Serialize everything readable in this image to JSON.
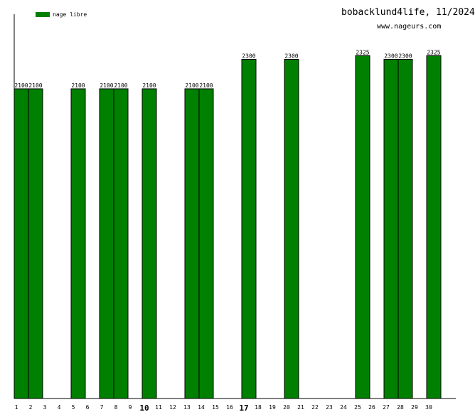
{
  "header": {
    "title": "bobacklund4life, 11/2024",
    "subtitle": "www.nageurs.com"
  },
  "legend": {
    "label": "nage libre",
    "color": "#008000"
  },
  "chart_data": {
    "type": "bar",
    "categories": [
      "1",
      "2",
      "3",
      "4",
      "5",
      "6",
      "7",
      "8",
      "9",
      "10",
      "11",
      "12",
      "13",
      "14",
      "15",
      "16",
      "17",
      "18",
      "19",
      "20",
      "21",
      "22",
      "23",
      "24",
      "25",
      "26",
      "27",
      "28",
      "29",
      "30"
    ],
    "series": [
      {
        "name": "nage libre",
        "color": "#008000",
        "values": [
          2100,
          2100,
          0,
          0,
          2100,
          0,
          2100,
          2100,
          0,
          2100,
          0,
          0,
          2100,
          2100,
          0,
          0,
          2300,
          0,
          0,
          2300,
          0,
          0,
          0,
          0,
          2325,
          0,
          2300,
          2300,
          0,
          2325
        ]
      }
    ],
    "bold_ticks": [
      "10",
      "17"
    ],
    "ylim": [
      0,
      2600
    ],
    "grid": false,
    "legend_position": "top-left"
  }
}
